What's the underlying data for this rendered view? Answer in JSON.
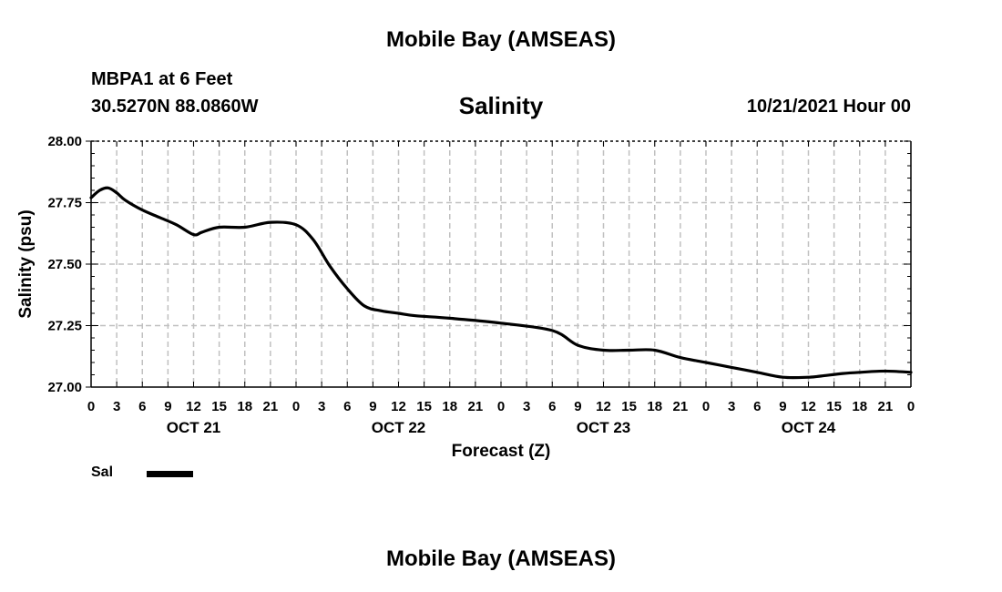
{
  "header": {
    "title": "Mobile Bay (AMSEAS)",
    "station": "MBPA1 at 6 Feet",
    "coordinates": "30.5270N  88.0860W",
    "variable": "Salinity",
    "run_time": "10/21/2021 Hour 00",
    "footer_title": "Mobile Bay (AMSEAS)"
  },
  "legend": {
    "series_label": "Sal",
    "series_color": "#000000"
  },
  "chart_data": {
    "type": "line",
    "title": "Salinity",
    "xlabel": "Forecast (Z)",
    "ylabel": "Salinity (psu)",
    "ylim": [
      27.0,
      28.0
    ],
    "xlim": [
      0,
      96
    ],
    "x_unit": "hours from 10/21/2021 00Z",
    "yticks": [
      "27.00",
      "27.25",
      "27.50",
      "27.75",
      "28.00"
    ],
    "xtick_labels": [
      "0",
      "3",
      "6",
      "9",
      "12",
      "15",
      "18",
      "21",
      "0",
      "3",
      "6",
      "9",
      "12",
      "15",
      "18",
      "21",
      "0",
      "3",
      "6",
      "9",
      "12",
      "15",
      "18",
      "21",
      "0",
      "3",
      "6",
      "9",
      "12",
      "15",
      "18",
      "21",
      "0"
    ],
    "day_labels": [
      {
        "label": "OCT 21",
        "hour": 12
      },
      {
        "label": "OCT 22",
        "hour": 36
      },
      {
        "label": "OCT 23",
        "hour": 60
      },
      {
        "label": "OCT 24",
        "hour": 84
      }
    ],
    "grid": true,
    "series": [
      {
        "name": "Sal",
        "color": "#000000",
        "x": [
          0,
          1,
          2,
          3,
          4,
          6,
          8,
          10,
          12,
          13,
          15,
          18,
          21,
          24,
          26,
          28,
          30,
          32,
          34,
          36,
          38,
          42,
          48,
          54,
          57,
          60,
          63,
          66,
          69,
          72,
          75,
          78,
          81,
          84,
          85.5,
          88,
          90,
          93,
          96
        ],
        "y": [
          27.77,
          27.8,
          27.81,
          27.79,
          27.76,
          27.72,
          27.69,
          27.66,
          27.62,
          27.63,
          27.65,
          27.65,
          27.67,
          27.66,
          27.6,
          27.49,
          27.4,
          27.33,
          27.31,
          27.3,
          27.29,
          27.28,
          27.26,
          27.23,
          27.17,
          27.15,
          27.15,
          27.15,
          27.12,
          27.1,
          27.08,
          27.06,
          27.04,
          27.04,
          27.045,
          27.055,
          27.06,
          27.065,
          27.06
        ]
      }
    ]
  }
}
